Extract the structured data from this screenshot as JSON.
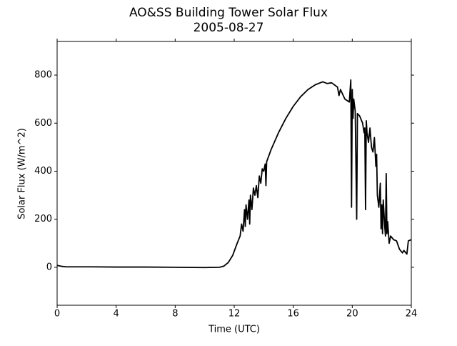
{
  "chart_data": {
    "type": "line",
    "title": "AO&SS Building Tower Solar Flux",
    "subtitle": "2005-08-27",
    "x_label": "Time (UTC)",
    "y_label": "Solar Flux (W/m^2)",
    "xlim": [
      0,
      24
    ],
    "xticks": [
      0,
      4,
      8,
      12,
      16,
      20,
      24
    ],
    "ylim": [
      -158,
      940
    ],
    "yticks": [
      0,
      200,
      400,
      600,
      800
    ],
    "grid": false,
    "series": [
      {
        "name": "Solar Flux",
        "color": "#000000",
        "x": [
          0,
          0.3,
          0.6,
          1,
          2,
          4,
          6,
          8,
          10,
          11,
          11.3,
          11.6,
          11.9,
          12.2,
          12.4,
          12.5,
          12.6,
          12.7,
          12.75,
          12.8,
          12.9,
          13.0,
          13.05,
          13.1,
          13.2,
          13.3,
          13.4,
          13.5,
          13.6,
          13.7,
          13.8,
          13.9,
          14.0,
          14.1,
          14.15,
          14.2,
          14.5,
          15,
          15.5,
          16,
          16.5,
          17,
          17.5,
          18,
          18.3,
          18.6,
          19,
          19.1,
          19.2,
          19.5,
          19.8,
          19.9,
          19.95,
          20.0,
          20.05,
          20.1,
          20.2,
          20.3,
          20.35,
          20.5,
          20.7,
          20.8,
          20.85,
          20.9,
          20.95,
          21.0,
          21.1,
          21.2,
          21.3,
          21.4,
          21.5,
          21.6,
          21.65,
          21.7,
          21.8,
          21.9,
          21.95,
          22.0,
          22.05,
          22.1,
          22.2,
          22.25,
          22.3,
          22.35,
          22.4,
          22.5,
          22.6,
          22.8,
          23.0,
          23.2,
          23.4,
          23.5,
          23.7,
          23.8,
          24
        ],
        "values": [
          8,
          4,
          2,
          2,
          2,
          1,
          1,
          0,
          -1,
          0,
          5,
          20,
          50,
          100,
          130,
          180,
          150,
          240,
          170,
          260,
          200,
          280,
          180,
          300,
          240,
          330,
          300,
          340,
          290,
          380,
          350,
          410,
          400,
          430,
          340,
          440,
          490,
          560,
          620,
          670,
          710,
          740,
          760,
          772,
          765,
          768,
          750,
          715,
          740,
          700,
          688,
          780,
          250,
          740,
          620,
          700,
          650,
          200,
          640,
          630,
          600,
          560,
          580,
          240,
          610,
          560,
          520,
          580,
          500,
          480,
          540,
          420,
          470,
          300,
          250,
          350,
          160,
          260,
          140,
          280,
          170,
          130,
          390,
          140,
          190,
          100,
          130,
          115,
          110,
          75,
          60,
          70,
          55,
          110,
          115
        ]
      }
    ]
  }
}
